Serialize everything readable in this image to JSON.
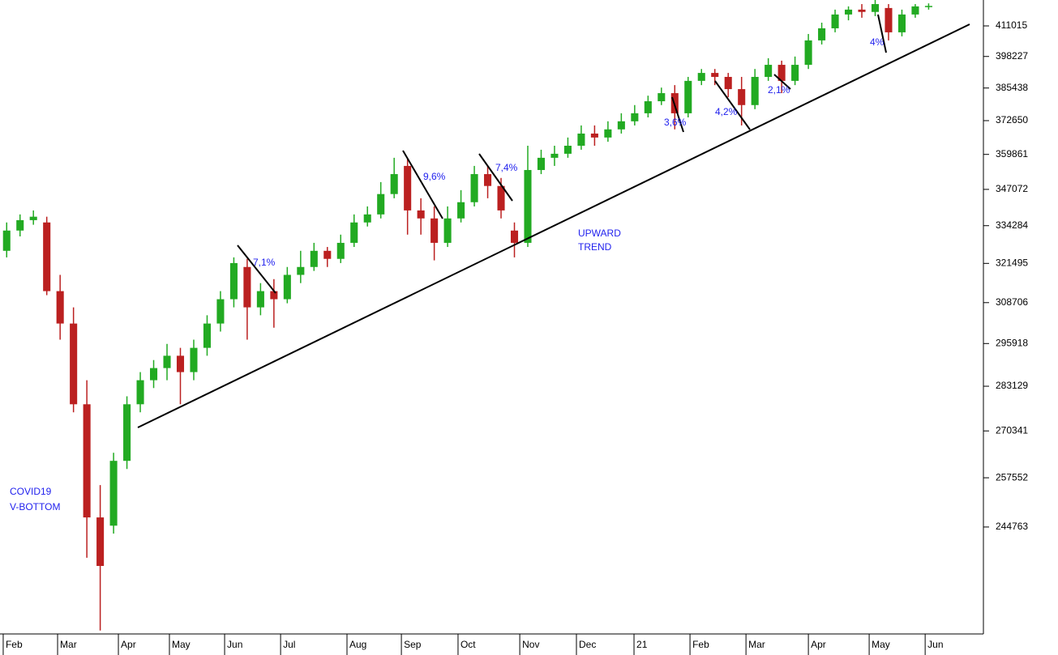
{
  "chart_data": {
    "type": "candlestick",
    "log_scale": true,
    "up_color": "#22aa22",
    "down_color": "#bb2020",
    "xlim": [
      0,
      73.6
    ],
    "xticks": [
      {
        "value": 0.24,
        "label": "Feb"
      },
      {
        "value": 4.31,
        "label": "Mar"
      },
      {
        "value": 8.86,
        "label": "Apr"
      },
      {
        "value": 12.68,
        "label": "May"
      },
      {
        "value": 16.81,
        "label": "Jun"
      },
      {
        "value": 21.0,
        "label": "Jul"
      },
      {
        "value": 25.97,
        "label": "Aug"
      },
      {
        "value": 30.04,
        "label": "Sep"
      },
      {
        "value": 34.28,
        "label": "Oct"
      },
      {
        "value": 38.9,
        "label": "Nov"
      },
      {
        "value": 43.14,
        "label": "Dec"
      },
      {
        "value": 47.45,
        "label": "21"
      },
      {
        "value": 51.64,
        "label": "Feb"
      },
      {
        "value": 55.83,
        "label": "Mar"
      },
      {
        "value": 60.5,
        "label": "Apr"
      },
      {
        "value": 65.05,
        "label": "May"
      },
      {
        "value": 69.24,
        "label": "Jun"
      }
    ],
    "ylim": [
      219130,
      422180
    ],
    "yticks": [
      244763,
      257552,
      270341,
      283129,
      295918,
      308706,
      321495,
      334284,
      347072,
      359861,
      372650,
      385438,
      398227,
      411015
    ],
    "annotations": [
      "7,1%",
      "9,6%",
      "7,4%",
      "3,6%",
      "4,2%",
      "2,1%",
      "4%",
      "UPWARD",
      "TREND",
      "COVID19",
      "V-BOTTOM"
    ],
    "x": [
      0.5,
      1.5,
      2.5,
      3.5,
      4.5,
      5.5,
      6.5,
      7.5,
      8.5,
      9.5,
      10.5,
      11.5,
      12.5,
      13.5,
      14.5,
      15.5,
      16.5,
      17.5,
      18.5,
      19.5,
      20.5,
      21.5,
      22.5,
      23.5,
      24.5,
      25.5,
      26.5,
      27.5,
      28.5,
      29.5,
      30.5,
      31.5,
      32.5,
      33.5,
      34.5,
      35.5,
      36.5,
      37.5,
      38.5,
      39.5,
      40.5,
      41.5,
      42.5,
      43.5,
      44.5,
      45.5,
      46.5,
      47.5,
      48.5,
      49.5,
      50.5,
      51.5,
      52.5,
      53.5,
      54.5,
      55.5,
      56.5,
      57.5,
      58.5,
      59.5,
      60.5,
      61.5,
      62.5,
      63.5,
      64.5,
      65.5,
      66.5,
      67.5,
      68.5,
      69.5
    ],
    "open": [
      325700,
      332600,
      336200,
      335400,
      312400,
      302100,
      277900,
      247200,
      245100,
      262100,
      277900,
      284900,
      288500,
      292200,
      287300,
      294600,
      302100,
      309800,
      320300,
      307200,
      312400,
      309800,
      317700,
      320300,
      325700,
      323000,
      328400,
      335400,
      338200,
      345400,
      355600,
      339600,
      336800,
      328400,
      336800,
      342500,
      352600,
      348300,
      332600,
      328400,
      354100,
      358600,
      360100,
      363100,
      367700,
      366200,
      369300,
      372400,
      375500,
      380200,
      383400,
      375500,
      388300,
      391500,
      389900,
      385000,
      378700,
      389900,
      394800,
      388300,
      394800,
      404900,
      410000,
      415900,
      418000,
      417000,
      418700,
      408300,
      415900,
      419400
    ],
    "high": [
      335400,
      338200,
      339600,
      337400,
      317700,
      307200,
      284900,
      255600,
      264300,
      280200,
      287300,
      290900,
      295800,
      294600,
      297100,
      304700,
      312400,
      323500,
      323000,
      315000,
      316300,
      320300,
      325700,
      328400,
      327000,
      331200,
      338200,
      341000,
      349700,
      358600,
      358600,
      343900,
      341000,
      341000,
      346800,
      355600,
      355600,
      351200,
      335400,
      363100,
      361600,
      363100,
      366200,
      370800,
      370800,
      372400,
      375500,
      378700,
      382400,
      385600,
      386600,
      389900,
      393100,
      393100,
      391500,
      389900,
      393100,
      397500,
      396500,
      398200,
      407600,
      412400,
      418000,
      419400,
      420400,
      422200,
      420400,
      418000,
      420400,
      420700
    ],
    "low": [
      323500,
      330600,
      334600,
      311100,
      297100,
      275600,
      237100,
      219900,
      243100,
      259900,
      275600,
      282600,
      284900,
      277900,
      284900,
      292200,
      299600,
      307200,
      297100,
      304700,
      300800,
      308500,
      315000,
      319000,
      320300,
      321600,
      327000,
      334000,
      336800,
      343900,
      331200,
      331200,
      322500,
      327000,
      335400,
      341000,
      343900,
      336800,
      323500,
      327000,
      352600,
      355600,
      358600,
      361600,
      363100,
      364600,
      367700,
      370800,
      373900,
      378700,
      369300,
      373900,
      386600,
      386600,
      381800,
      370800,
      377100,
      388300,
      383400,
      386600,
      393100,
      403200,
      408300,
      413400,
      414500,
      415200,
      404900,
      406600,
      414500,
      418000
    ],
    "close": [
      332600,
      336200,
      337400,
      312400,
      302100,
      277900,
      247200,
      235100,
      262100,
      277900,
      284900,
      288500,
      292200,
      287300,
      294600,
      302100,
      309800,
      321600,
      307200,
      312400,
      309800,
      317700,
      320300,
      325700,
      323000,
      328400,
      335400,
      338200,
      345400,
      352600,
      339600,
      336800,
      328400,
      336800,
      342500,
      352600,
      348300,
      339600,
      328400,
      354100,
      358600,
      360100,
      363100,
      367700,
      366200,
      369300,
      372400,
      375500,
      380200,
      383400,
      375500,
      388300,
      391500,
      389900,
      385000,
      378700,
      389900,
      394800,
      388300,
      394800,
      404900,
      410000,
      415900,
      418000,
      417000,
      420400,
      408300,
      415900,
      419400,
      419600
    ]
  }
}
